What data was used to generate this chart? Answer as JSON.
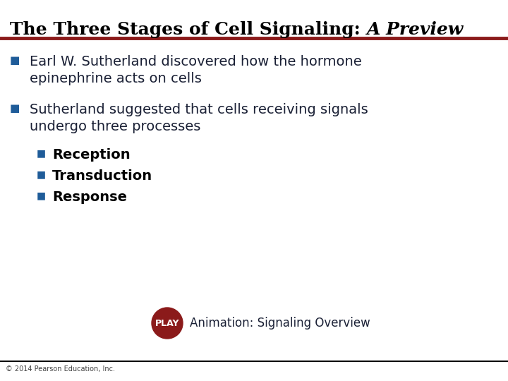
{
  "title_regular": "The Three Stages of Cell Signaling: ",
  "title_italic": "A Preview",
  "title_fontsize": 18,
  "title_color": "#000000",
  "divider_color": "#8B1a1a",
  "bullet_color": "#1F5C99",
  "body_color": "#1a2035",
  "body_fontsize": 14,
  "sub_body_color": "#000000",
  "sub_fontsize": 14,
  "background_color": "#ffffff",
  "bullet1_line1": "Earl W. Sutherland discovered how the hormone",
  "bullet1_line2": "epinephrine acts on cells",
  "bullet2_line1": "Sutherland suggested that cells receiving signals",
  "bullet2_line2": "undergo three processes",
  "sub_bullets": [
    "Reception",
    "Transduction",
    "Response"
  ],
  "play_color": "#8B1a1a",
  "play_text": "PLAY",
  "play_label": "Animation: Signaling Overview",
  "play_label_fontsize": 12,
  "play_text_fontsize": 9,
  "footer_text": "© 2014 Pearson Education, Inc.",
  "footer_fontsize": 7,
  "footer_color": "#444444",
  "bottom_line_color": "#000000",
  "bullet_square": "■"
}
